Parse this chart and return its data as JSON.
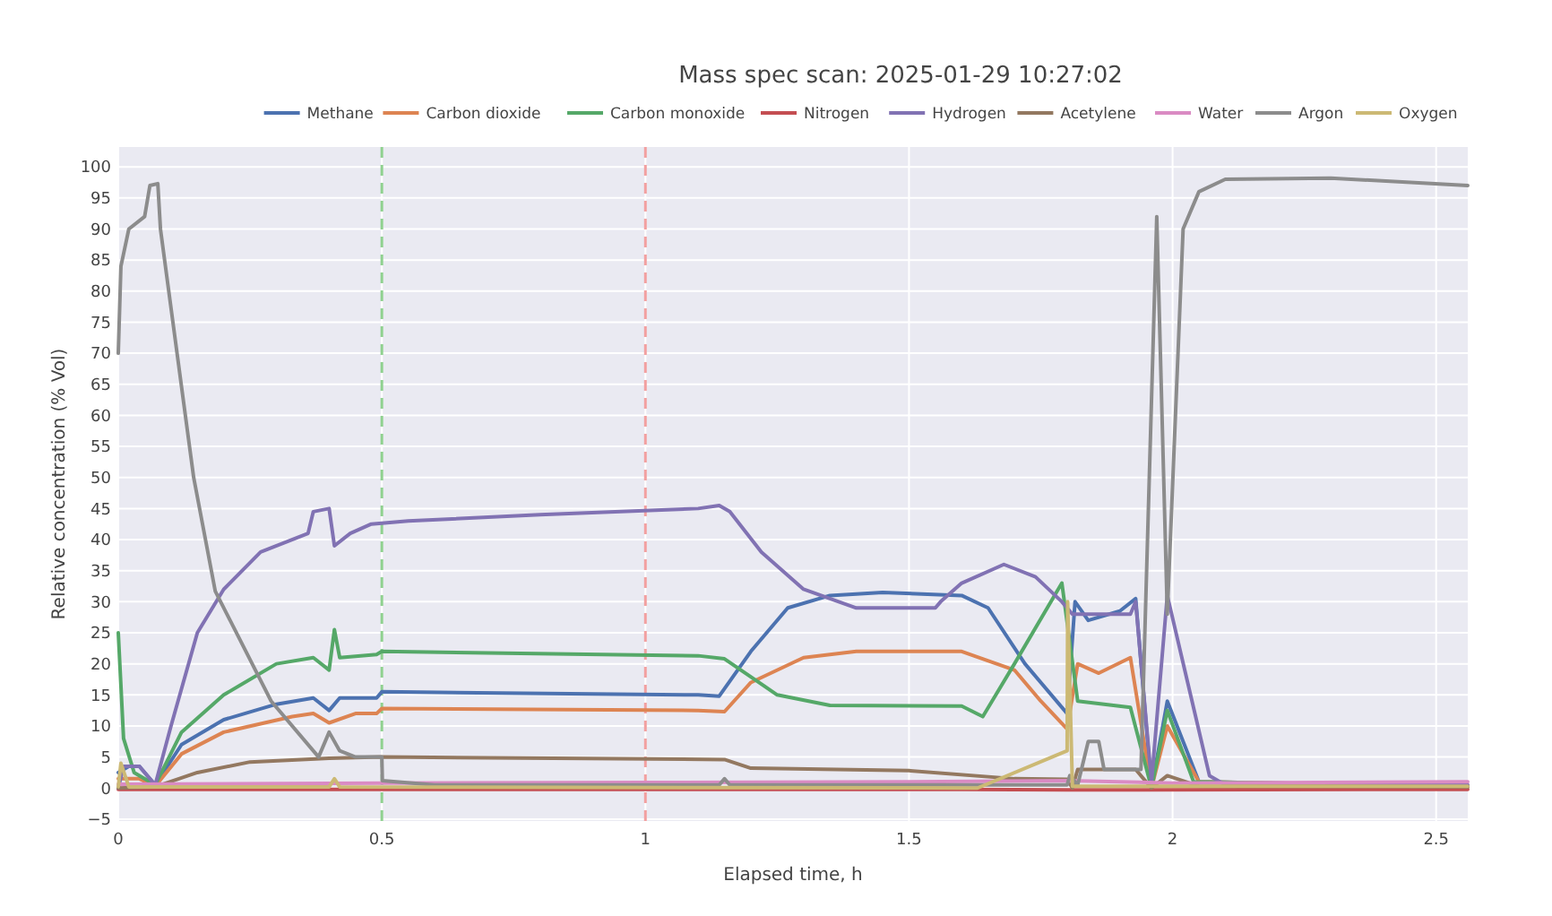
{
  "chart_data": {
    "type": "line",
    "title": "Mass spec scan: 2025-01-29 10:27:02",
    "xlabel": "Elapsed time, h",
    "ylabel": "Relative concentration (% Vol)",
    "xlim": [
      0,
      2.56
    ],
    "ylim": [
      -5.3,
      103.2
    ],
    "xticks": [
      0,
      0.5,
      1,
      1.5,
      2,
      2.5
    ],
    "yticks": [
      -5,
      0,
      5,
      10,
      15,
      20,
      25,
      30,
      35,
      40,
      45,
      50,
      55,
      60,
      65,
      70,
      75,
      80,
      85,
      90,
      95,
      100
    ],
    "grid": true,
    "legend": "top",
    "line_style": "solid",
    "ref_lines": [
      {
        "axis": "x",
        "value": 0.5,
        "color": "#8fd18f",
        "line_style": "dashed"
      },
      {
        "axis": "x",
        "value": 1,
        "color": "#f2a0a0",
        "line_style": "dashed"
      }
    ],
    "series": [
      {
        "name": "Methane",
        "color": "#4c72b0",
        "x": [
          0,
          0.01,
          0.02,
          0.04,
          0.07,
          0.12,
          0.2,
          0.3,
          0.37,
          0.4,
          0.42,
          0.49,
          0.5,
          1.1,
          1.14,
          1.2,
          1.27,
          1.35,
          1.45,
          1.6,
          1.65,
          1.72,
          1.8,
          1.815,
          1.84,
          1.9,
          1.93,
          1.96,
          1.99,
          2.05,
          2.56
        ],
        "values": [
          2.5,
          3,
          3.5,
          3.5,
          0.5,
          7,
          11,
          13.5,
          14.5,
          12.5,
          14.5,
          14.5,
          15.5,
          15,
          14.8,
          22,
          29,
          31,
          31.5,
          31,
          29,
          20,
          12,
          30,
          27,
          28.5,
          30.5,
          0,
          14,
          1,
          0.3
        ]
      },
      {
        "name": "Carbon dioxide",
        "color": "#dd8452",
        "x": [
          0,
          0.04,
          0.07,
          0.12,
          0.2,
          0.33,
          0.37,
          0.4,
          0.45,
          0.49,
          0.5,
          1.1,
          1.15,
          1.2,
          1.3,
          1.4,
          1.6,
          1.7,
          1.75,
          1.8,
          1.82,
          1.86,
          1.92,
          1.96,
          1.99,
          2.05,
          2.56
        ],
        "values": [
          1.5,
          1.5,
          0.3,
          5.5,
          9,
          11.5,
          12,
          10.5,
          12,
          12,
          12.8,
          12.5,
          12.3,
          17,
          21,
          22,
          22,
          19,
          14,
          9.5,
          20,
          18.5,
          21,
          0,
          10,
          1,
          0.3
        ]
      },
      {
        "name": "Carbon monoxide",
        "color": "#55a868",
        "x": [
          0,
          0.01,
          0.03,
          0.07,
          0.12,
          0.2,
          0.3,
          0.37,
          0.4,
          0.41,
          0.42,
          0.49,
          0.5,
          1.1,
          1.15,
          1.25,
          1.35,
          1.6,
          1.64,
          1.7,
          1.79,
          1.82,
          1.92,
          1.96,
          1.99,
          2.04,
          2.56
        ],
        "values": [
          25,
          8,
          2.5,
          0.5,
          9,
          15,
          20,
          21,
          19,
          25.5,
          21,
          21.5,
          22,
          21.3,
          20.8,
          15,
          13.3,
          13.2,
          11.5,
          20,
          33,
          14,
          13,
          0,
          12.5,
          1,
          0.3
        ]
      },
      {
        "name": "Nitrogen",
        "color": "#c44e52",
        "x": [
          0,
          1.6,
          1.8,
          2.56
        ],
        "values": [
          -0.2,
          -0.2,
          -0.3,
          -0.2
        ]
      },
      {
        "name": "Hydrogen",
        "color": "#8172b3",
        "x": [
          0,
          0.01,
          0.04,
          0.07,
          0.1,
          0.15,
          0.2,
          0.27,
          0.36,
          0.37,
          0.4,
          0.41,
          0.44,
          0.48,
          0.55,
          0.8,
          1.1,
          1.14,
          1.16,
          1.22,
          1.3,
          1.4,
          1.55,
          1.56,
          1.6,
          1.68,
          1.74,
          1.79,
          1.81,
          1.92,
          1.93,
          1.96,
          1.99,
          2.07,
          2.1,
          2.56
        ],
        "values": [
          0,
          3.5,
          3.5,
          0.5,
          10,
          25,
          32,
          38,
          41,
          44.5,
          45,
          39,
          41,
          42.5,
          43,
          44,
          45,
          45.5,
          44.5,
          38,
          32,
          29,
          29,
          30,
          33,
          36,
          34,
          30,
          28,
          28,
          30,
          1,
          31,
          2,
          0.5,
          0.5
        ]
      },
      {
        "name": "Acetylene",
        "color": "#937860",
        "x": [
          0,
          0.07,
          0.15,
          0.25,
          0.4,
          0.5,
          1.15,
          1.2,
          1.5,
          1.7,
          1.8,
          1.81,
          1.82,
          1.93,
          1.96,
          1.99,
          2.05,
          2.56
        ],
        "values": [
          0,
          0.2,
          2.5,
          4.2,
          4.8,
          5,
          4.6,
          3.2,
          2.8,
          1.5,
          1.4,
          0,
          3,
          3,
          0,
          2,
          0.3,
          0.2
        ]
      },
      {
        "name": "Water",
        "color": "#da8bc3",
        "x": [
          0,
          0.5,
          1,
          1.5,
          1.8,
          2,
          2.56
        ],
        "values": [
          0.6,
          0.8,
          0.9,
          1,
          1.2,
          0.8,
          1
        ]
      },
      {
        "name": "Argon",
        "color": "#8c8c8c",
        "x": [
          0,
          0.005,
          0.02,
          0.05,
          0.06,
          0.075,
          0.08,
          0.143,
          0.184,
          0.29,
          0.38,
          0.4,
          0.42,
          0.45,
          0.5,
          0.501,
          0.6,
          1.14,
          1.15,
          1.16,
          1.8,
          1.805,
          1.82,
          1.84,
          1.86,
          1.87,
          1.93,
          1.94,
          1.97,
          1.99,
          2.02,
          2.05,
          2.1,
          2.3,
          2.56
        ],
        "values": [
          70,
          84,
          90,
          92,
          97,
          97.3,
          90,
          50,
          31.7,
          14,
          5,
          9,
          6,
          5,
          5,
          1.2,
          0.5,
          0.5,
          1.5,
          0.5,
          0.5,
          2,
          0.5,
          7.5,
          7.5,
          3,
          3,
          3,
          92,
          28,
          90,
          96,
          98,
          98.2,
          97
        ]
      },
      {
        "name": "Oxygen",
        "color": "#ccb974",
        "x": [
          0,
          0.005,
          0.02,
          0.4,
          0.41,
          0.42,
          1.63,
          1.8,
          1.801,
          1.81,
          2.56
        ],
        "values": [
          0.2,
          4,
          0.2,
          0.2,
          1.5,
          0.2,
          0,
          6,
          30,
          0.3,
          0.3
        ]
      }
    ]
  }
}
